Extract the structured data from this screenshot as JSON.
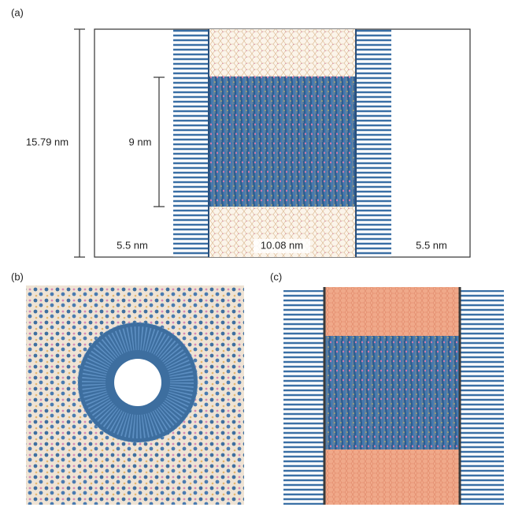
{
  "panels": [
    {
      "label": "(a)",
      "dimensions": {
        "height": "15.79 nm",
        "pore": "9 nm",
        "left": "5.5 nm",
        "center": "10.08 nm",
        "right": "5.5 nm"
      }
    },
    {
      "label": "(b)"
    },
    {
      "label": "(c)"
    }
  ]
}
